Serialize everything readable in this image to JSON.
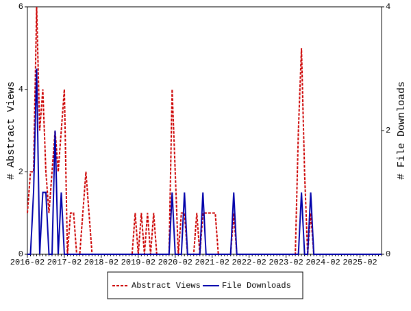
{
  "chart_data": {
    "type": "line",
    "categories": [
      "2016-02",
      null,
      null,
      null,
      null,
      null,
      null,
      null,
      null,
      null,
      null,
      null,
      "2017-02",
      null,
      null,
      null,
      null,
      null,
      null,
      null,
      null,
      null,
      null,
      null,
      "2018-02",
      null,
      null,
      null,
      null,
      null,
      null,
      null,
      null,
      null,
      null,
      null,
      "2019-02",
      null,
      null,
      null,
      null,
      null,
      null,
      null,
      null,
      null,
      null,
      null,
      "2020-02",
      null,
      null,
      null,
      null,
      null,
      null,
      null,
      null,
      null,
      null,
      null,
      "2021-02",
      null,
      null,
      null,
      null,
      null,
      null,
      null,
      null,
      null,
      null,
      null,
      "2022-02",
      null,
      null,
      null,
      null,
      null,
      null,
      null,
      null,
      null,
      null,
      null,
      "2023-02",
      null,
      null,
      null,
      null,
      null,
      null,
      null,
      null,
      null,
      null,
      null,
      "2024-02",
      null,
      null,
      null,
      null,
      null,
      null,
      null,
      null,
      null,
      null,
      null,
      "2025-02",
      null,
      null,
      null,
      null,
      null,
      null,
      null
    ],
    "series": [
      {
        "name": "Abstract Views",
        "color": "#cc0000",
        "dash": true,
        "values": [
          1,
          2,
          2,
          6,
          3,
          4,
          2,
          1,
          2,
          3,
          2,
          3,
          4,
          0,
          1,
          1,
          0,
          0,
          1,
          2,
          1,
          0,
          0,
          0,
          0,
          0,
          0,
          0,
          0,
          0,
          0,
          0,
          0,
          0,
          0,
          1,
          0,
          1,
          0,
          1,
          0,
          1,
          0,
          0,
          0,
          0,
          0,
          4,
          2,
          0,
          1,
          1,
          0,
          0,
          0,
          1,
          0,
          1,
          1,
          1,
          1,
          1,
          0,
          0,
          0,
          0,
          0,
          1,
          0,
          0,
          0,
          0,
          0,
          0,
          0,
          0,
          0,
          0,
          0,
          0,
          0,
          0,
          0,
          0,
          0,
          0,
          0,
          0,
          3,
          5,
          2,
          0,
          1,
          0,
          0,
          0,
          0,
          0,
          0,
          0,
          0,
          0,
          0,
          0,
          0,
          0,
          0,
          0,
          0,
          0,
          0,
          0,
          0,
          0,
          0,
          0
        ]
      },
      {
        "name": "File Downloads",
        "color": "#0000aa",
        "dash": false,
        "axis": "y2",
        "values": [
          0,
          0,
          1,
          3,
          0,
          1,
          1,
          0,
          0,
          2,
          0,
          1,
          0,
          0,
          0,
          0,
          0,
          0,
          0,
          0,
          0,
          0,
          0,
          0,
          0,
          0,
          0,
          0,
          0,
          0,
          0,
          0,
          0,
          0,
          0,
          0,
          0,
          0,
          0,
          0,
          0,
          0,
          0,
          0,
          0,
          0,
          0,
          1,
          0,
          0,
          0,
          1,
          0,
          0,
          0,
          0,
          0,
          1,
          0,
          0,
          0,
          0,
          0,
          0,
          0,
          0,
          0,
          1,
          0,
          0,
          0,
          0,
          0,
          0,
          0,
          0,
          0,
          0,
          0,
          0,
          0,
          0,
          0,
          0,
          0,
          0,
          0,
          0,
          0,
          1,
          0,
          0,
          1,
          0,
          0,
          0,
          0,
          0,
          0,
          0,
          0,
          0,
          0,
          0,
          0,
          0,
          0,
          0,
          0,
          0,
          0,
          0,
          0,
          0,
          0,
          0
        ]
      }
    ],
    "ylabel": "# Abstract Views",
    "y2label": "# File Downloads",
    "ylim": [
      0,
      6
    ],
    "yticks": [
      0,
      2,
      4,
      6
    ],
    "y2lim": [
      0,
      4
    ],
    "y2ticks": [
      0,
      2,
      4
    ]
  }
}
